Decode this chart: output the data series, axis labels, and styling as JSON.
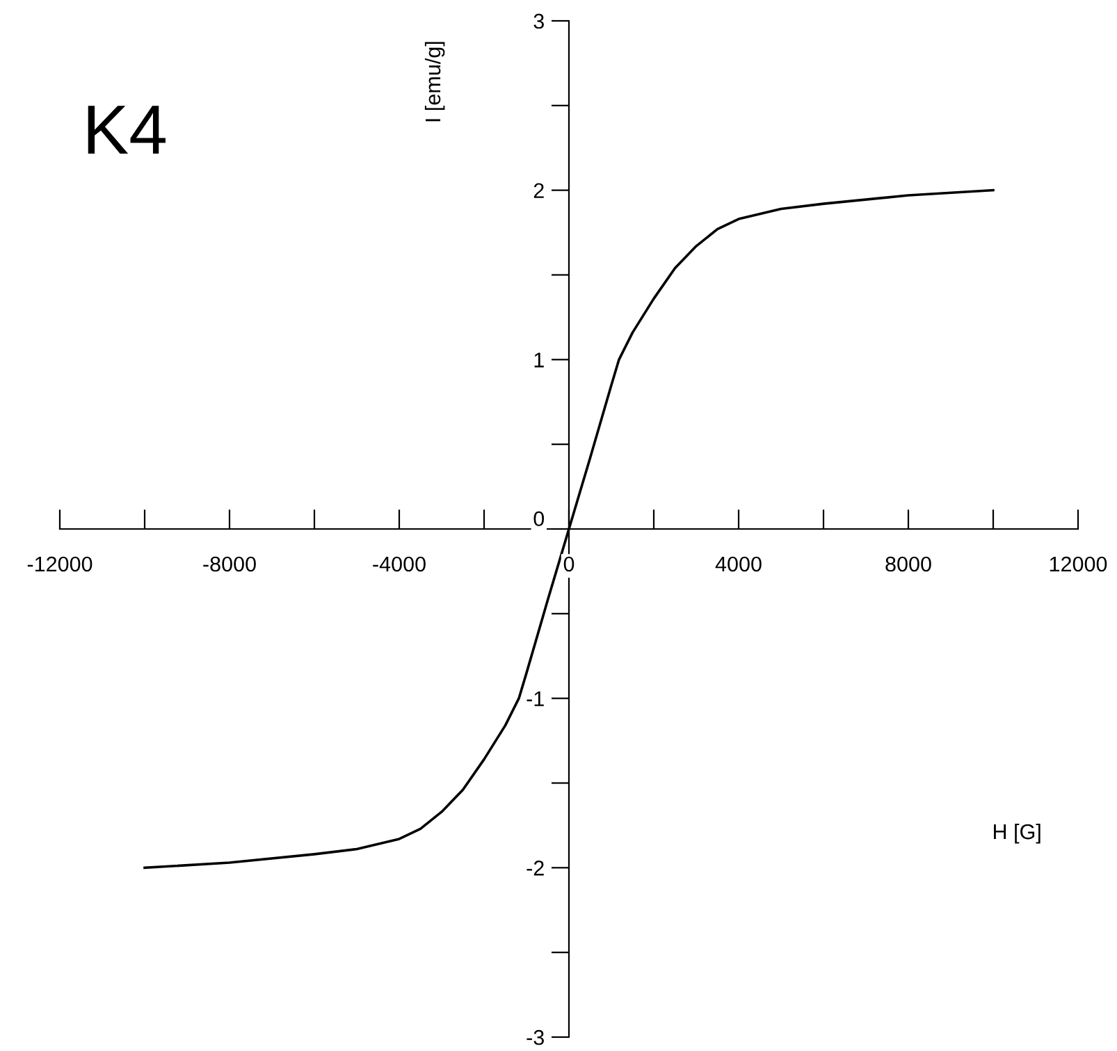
{
  "chart_data": {
    "type": "line",
    "xlabel": "H [G]",
    "ylabel": "I [emu/g]",
    "annotations": [
      "K4"
    ],
    "x": [
      -10000,
      -8000,
      -6000,
      -5000,
      -4000,
      -3500,
      -3000,
      -2500,
      -2000,
      -1500,
      -1180,
      -1000,
      -500,
      0,
      500,
      1000,
      1180,
      1500,
      2000,
      2500,
      3000,
      3500,
      4000,
      5000,
      6000,
      8000,
      10000
    ],
    "series": [
      {
        "color": "#000000",
        "values": [
          -2.0,
          -1.97,
          -1.92,
          -1.89,
          -1.83,
          -1.77,
          -1.67,
          -1.54,
          -1.36,
          -1.16,
          -1.0,
          -0.85,
          -0.42,
          0,
          0.42,
          0.85,
          1.0,
          1.16,
          1.36,
          1.54,
          1.67,
          1.77,
          1.83,
          1.89,
          1.92,
          1.97,
          2.0
        ]
      }
    ],
    "xlim": [
      -12000,
      12000
    ],
    "xticks": [
      -12000,
      {
        "value": -10000,
        "label": null
      },
      -8000,
      {
        "value": -6000,
        "label": null
      },
      -4000,
      {
        "value": -2000,
        "label": null
      },
      0,
      {
        "value": 2000,
        "label": null
      },
      4000,
      {
        "value": 6000,
        "label": null
      },
      8000,
      {
        "value": 10000,
        "label": null
      },
      12000
    ],
    "ylim": [
      -3,
      3
    ],
    "yticks": [
      -3,
      {
        "value": -2.5,
        "label": null
      },
      -2,
      {
        "value": -1.5,
        "label": null
      },
      -1,
      {
        "value": -0.5,
        "label": null
      },
      0,
      {
        "value": 0.5,
        "label": null
      },
      1,
      {
        "value": 1.5,
        "label": null
      },
      2,
      {
        "value": 2.5,
        "label": null
      },
      3
    ],
    "grid": false,
    "legend": false,
    "marker": "none",
    "line_style": "solid"
  }
}
